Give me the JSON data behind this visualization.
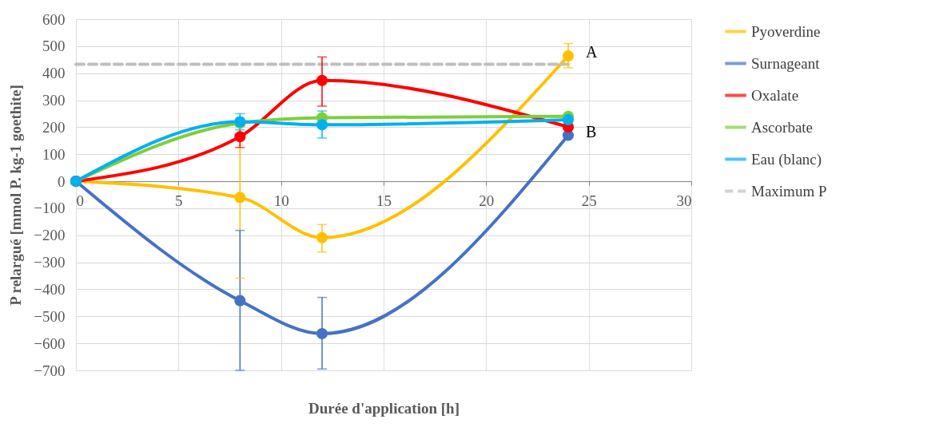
{
  "chart_data": {
    "type": "line",
    "xlabel": "Durée d'application [h]",
    "ylabel": "P relargué [mmol P. kg-1 goethite]",
    "xlim": [
      0,
      30
    ],
    "xticks": [
      0,
      5,
      10,
      15,
      20,
      25,
      30
    ],
    "ylim": [
      -700,
      600
    ],
    "yticks": [
      -700,
      -600,
      -500,
      -400,
      -300,
      -200,
      -100,
      0,
      100,
      200,
      300,
      400,
      500,
      600
    ],
    "grid": true,
    "legend": "right",
    "marker": "circle",
    "x": [
      0,
      8,
      12,
      24
    ],
    "series": [
      {
        "name": "Pyoverdine",
        "color": "#ffc000",
        "values": [
          0,
          -60,
          -209,
          464
        ],
        "errors": [
          null,
          [
            -359,
            235
          ],
          [
            -262,
            -160
          ],
          [
            420,
            510
          ]
        ]
      },
      {
        "name": "Surnageant",
        "color": "#4472c4",
        "values": [
          0,
          -442,
          -564,
          170
        ],
        "errors": [
          null,
          [
            -700,
            -182
          ],
          [
            -695,
            -430
          ],
          null
        ]
      },
      {
        "name": "Oxalate",
        "color": "#ff0000",
        "values": [
          0,
          165,
          373,
          201
        ],
        "errors": [
          null,
          [
            125,
            205
          ],
          [
            278,
            460
          ],
          null
        ]
      },
      {
        "name": "Ascorbate",
        "color": "#7dce3c",
        "values": [
          0,
          215,
          235,
          240
        ]
      },
      {
        "name": "Eau (blanc)",
        "color": "#00b0f0",
        "values": [
          0,
          220,
          209,
          228
        ],
        "errors": [
          null,
          [
            190,
            250
          ],
          [
            160,
            260
          ],
          null
        ]
      },
      {
        "name": "Maximum P",
        "type": "line",
        "color": "#bfbfbf",
        "line_style": "dashed",
        "marker": "none",
        "x": [
          0,
          24
        ],
        "values": [
          433,
          433
        ]
      }
    ],
    "annotations": [
      {
        "text": "A",
        "x": 24,
        "y": 464
      },
      {
        "text": "B",
        "x": 24,
        "y": 170
      }
    ]
  }
}
